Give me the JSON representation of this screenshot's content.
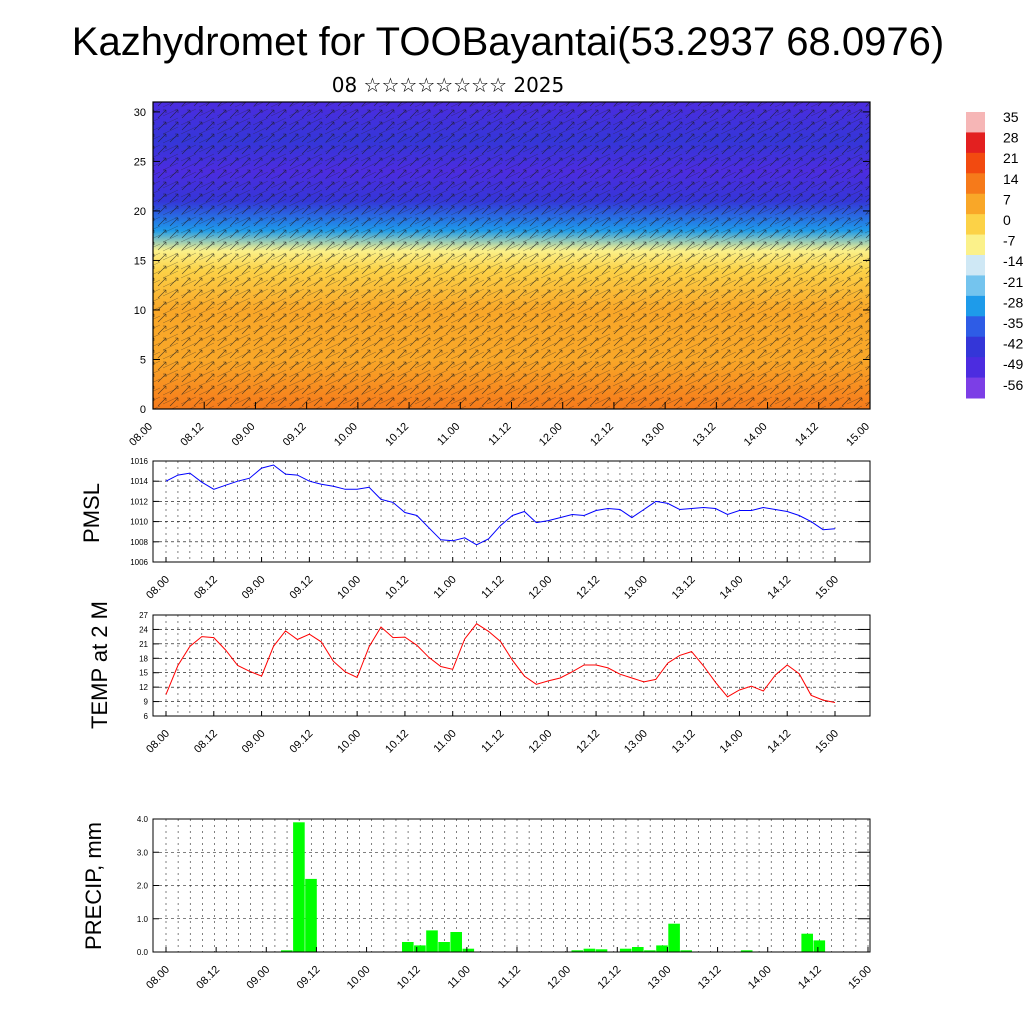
{
  "header": {
    "title": "Kazhydromet for TOOBayantai(53.2937 68.0976)",
    "subtitle": "08 ☆☆☆☆☆☆☆☆ 2025"
  },
  "time_labels": [
    "08.00",
    "08.12",
    "09.00",
    "09.12",
    "10.00",
    "10.12",
    "11.00",
    "11.12",
    "12.00",
    "12.12",
    "13.00",
    "13.12",
    "14.00",
    "14.12",
    "15.00"
  ],
  "colors": {
    "pmsl_line": "#0000ff",
    "temp_line": "#ff0000",
    "precip_bar": "#00ff00",
    "grid": "#000000"
  },
  "chart_data": [
    {
      "type": "heatmap",
      "name": "vertical-section",
      "xlabel": "",
      "ylabel": "",
      "y_ticks": [
        0,
        5,
        10,
        15,
        20,
        25,
        30
      ],
      "ylim": [
        0,
        31
      ],
      "x_ticks": [
        "08.00",
        "08.12",
        "09.00",
        "09.12",
        "10.00",
        "10.12",
        "11.00",
        "11.12",
        "12.00",
        "12.12",
        "13.00",
        "13.12",
        "14.00",
        "14.12",
        "15.00"
      ],
      "vector_overlay": true,
      "colorbar": {
        "labels": [
          "35",
          "28",
          "21",
          "14",
          "7",
          "0",
          "-7",
          "-14",
          "-21",
          "-28",
          "-35",
          "-42",
          "-49",
          "-56"
        ],
        "colors": [
          "#f6b6b6",
          "#e32020",
          "#f24a10",
          "#f67a1a",
          "#f9a728",
          "#fcd247",
          "#fbf18a",
          "#cfe8f5",
          "#74c4ee",
          "#1e9bea",
          "#2e5ce6",
          "#3436d8",
          "#4c2ce0",
          "#7c3ee6"
        ]
      },
      "bands": [
        {
          "level": 0,
          "value": 14
        },
        {
          "level": 5,
          "value": 10
        },
        {
          "level": 10,
          "value": 6
        },
        {
          "level": 14,
          "value": 0
        },
        {
          "level": 16,
          "value": -10
        },
        {
          "level": 18,
          "value": -28
        },
        {
          "level": 21,
          "value": -40
        },
        {
          "level": 24,
          "value": -52
        },
        {
          "level": 27,
          "value": -44
        },
        {
          "level": 31,
          "value": -48
        }
      ]
    },
    {
      "type": "line",
      "name": "pmsl",
      "ylabel": "PMSL",
      "ylim": [
        1006,
        1016
      ],
      "y_ticks": [
        "1006",
        "1008",
        "1010",
        "1012",
        "1014",
        "1016"
      ],
      "series": [
        {
          "values": [
            1014.0,
            1014.6,
            1014.8,
            1013.9,
            1013.2,
            1013.6,
            1014.0,
            1014.3,
            1015.3,
            1015.6,
            1014.7,
            1014.6,
            1014.0,
            1013.7,
            1013.5,
            1013.2,
            1013.2,
            1013.4,
            1012.2,
            1011.9,
            1010.9,
            1010.6,
            1009.4,
            1008.2,
            1008.1,
            1008.4,
            1007.7,
            1008.3,
            1009.6,
            1010.6,
            1011.0,
            1009.9,
            1010.1,
            1010.4,
            1010.7,
            1010.6,
            1011.1,
            1011.3,
            1011.2,
            1010.4,
            1011.2,
            1012.0,
            1011.8,
            1011.2,
            1011.3,
            1011.4,
            1011.3,
            1010.7,
            1011.1,
            1011.1,
            1011.4,
            1011.2,
            1011.0,
            1010.6,
            1010.0,
            1009.2,
            1009.3
          ]
        }
      ]
    },
    {
      "type": "line",
      "name": "temp-2m",
      "ylabel": "TEMP at 2 M",
      "ylim": [
        6,
        27
      ],
      "y_ticks": [
        "6",
        "9",
        "12",
        "15",
        "18",
        "21",
        "24",
        "27"
      ],
      "series": [
        {
          "values": [
            10.5,
            16.5,
            20.5,
            22.5,
            22.3,
            19.7,
            16.5,
            15.3,
            14.3,
            20.5,
            23.7,
            21.9,
            23.0,
            21.4,
            17.4,
            15.2,
            14.0,
            20.4,
            24.5,
            22.3,
            22.4,
            20.7,
            18.2,
            16.3,
            15.7,
            22.0,
            25.2,
            23.6,
            21.5,
            17.6,
            14.3,
            12.6,
            13.3,
            13.9,
            15.2,
            16.6,
            16.6,
            16.0,
            14.7,
            13.9,
            13.1,
            13.6,
            17.0,
            18.6,
            19.4,
            16.4,
            13.0,
            10.0,
            11.4,
            12.2,
            11.2,
            14.5,
            16.6,
            14.8,
            10.3,
            9.3,
            8.8
          ]
        }
      ]
    },
    {
      "type": "bar",
      "name": "precip",
      "ylabel": "PRECIP, mm",
      "ylim": [
        0,
        4.0
      ],
      "y_ticks": [
        "0.0",
        "1.0",
        "2.0",
        "3.0",
        "4.0"
      ],
      "values": [
        0,
        0,
        0,
        0,
        0,
        0,
        0,
        0,
        0,
        0,
        0.05,
        3.9,
        2.2,
        0,
        0,
        0,
        0,
        0,
        0,
        0,
        0.3,
        0.2,
        0.65,
        0.3,
        0.6,
        0.1,
        0,
        0,
        0,
        0,
        0,
        0,
        0,
        0,
        0.05,
        0.1,
        0.08,
        0,
        0.1,
        0.15,
        0.05,
        0.2,
        0.85,
        0.05,
        0,
        0,
        0,
        0,
        0.05,
        0,
        0,
        0,
        0,
        0.55,
        0.35,
        0,
        0,
        0,
        0
      ]
    }
  ]
}
